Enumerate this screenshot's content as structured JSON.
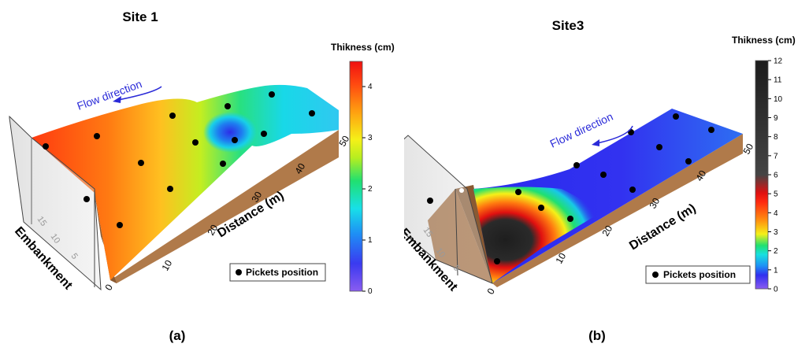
{
  "chart_data": [
    {
      "type": "surface",
      "panel_label": "(a)",
      "title": "Site 1",
      "xlabel": "Distance (m)",
      "ylabel": "Embankment",
      "x_ticks": [
        "0",
        "10",
        "20",
        "30",
        "40",
        "50"
      ],
      "y_ticks": [
        "5",
        "10",
        "15"
      ],
      "colorbar": {
        "title": "Thikness (cm)",
        "min": 0,
        "max": 4.5,
        "ticks": [
          "0",
          "1",
          "2",
          "3",
          "4"
        ]
      },
      "annotation": "Flow direction",
      "legend": "Pickets position",
      "pickets_count": 16
    },
    {
      "type": "surface",
      "panel_label": "(b)",
      "title": "Site3",
      "xlabel": "Distance (m)",
      "ylabel": "Embankment",
      "x_ticks": [
        "0",
        "10",
        "20",
        "30",
        "40",
        "50"
      ],
      "y_ticks": [
        "5",
        "10",
        "15"
      ],
      "colorbar": {
        "title": "Thikness (cm)",
        "min": 0,
        "max": 12,
        "ticks": [
          "0",
          "1",
          "2",
          "3",
          "4",
          "5",
          "6",
          "7",
          "8",
          "9",
          "10",
          "11",
          "12"
        ]
      },
      "annotation": "Flow direction",
      "legend": "Pickets position",
      "pickets_count": 16
    }
  ]
}
